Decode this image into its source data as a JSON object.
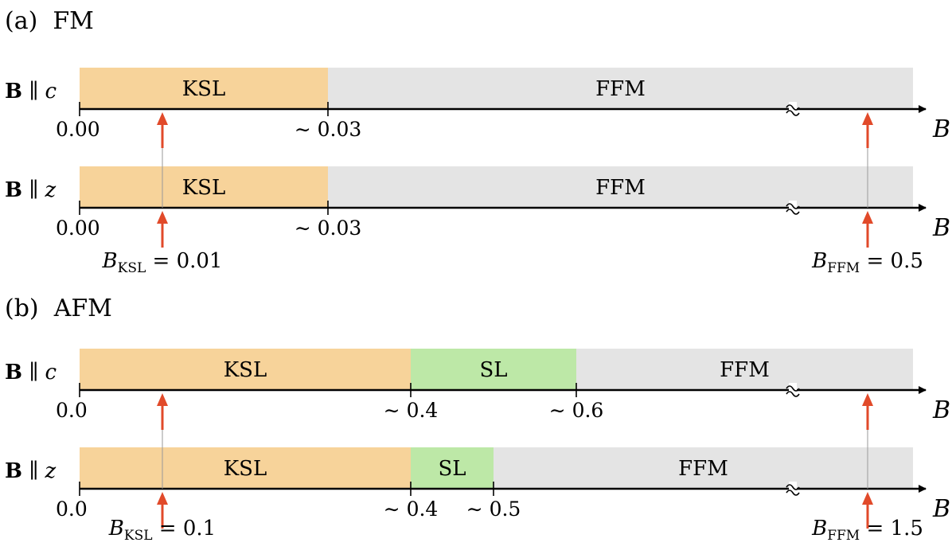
{
  "colors": {
    "ksl": "#f7d39a",
    "sl": "#bde8a7",
    "ffm": "#e4e4e4",
    "arrow": "#e14a2a",
    "axis": "#000000"
  },
  "panels": [
    {
      "letter": "(a)",
      "name": "FM",
      "max": 0.05,
      "rows": [
        {
          "field_bold": "B",
          "field_sep": "∥",
          "field_dir": "c",
          "phases": [
            {
              "label": "KSL",
              "start": 0,
              "end": 0.03,
              "color": "ksl"
            },
            {
              "label": "FFM",
              "start": 0.03,
              "end": null,
              "color": "ffm"
            }
          ],
          "ticks": [
            {
              "value": 0,
              "label": "0.00"
            },
            {
              "value": 0.03,
              "label": "∼ 0.03"
            }
          ],
          "axis_label": "B"
        },
        {
          "field_bold": "B",
          "field_sep": "∥",
          "field_dir": "z",
          "phases": [
            {
              "label": "KSL",
              "start": 0,
              "end": 0.03,
              "color": "ksl"
            },
            {
              "label": "FFM",
              "start": 0.03,
              "end": null,
              "color": "ffm"
            }
          ],
          "ticks": [
            {
              "value": 0,
              "label": "0.00"
            },
            {
              "value": 0.03,
              "label": "∼ 0.03"
            }
          ],
          "axis_label": "B"
        }
      ],
      "markers": {
        "ksl": {
          "value": 0.01,
          "sym": "B",
          "sub": "KSL",
          "rhs": "= 0.01"
        },
        "ffm": {
          "value": 0.5,
          "sym": "B",
          "sub": "FFM",
          "rhs": "= 0.5"
        }
      }
    },
    {
      "letter": "(b)",
      "name": "AFM",
      "max": 0.8,
      "rows": [
        {
          "field_bold": "B",
          "field_sep": "∥",
          "field_dir": "c",
          "phases": [
            {
              "label": "KSL",
              "start": 0,
              "end": 0.4,
              "color": "ksl"
            },
            {
              "label": "SL",
              "start": 0.4,
              "end": 0.6,
              "color": "sl"
            },
            {
              "label": "FFM",
              "start": 0.6,
              "end": null,
              "color": "ffm"
            }
          ],
          "ticks": [
            {
              "value": 0,
              "label": "0.0"
            },
            {
              "value": 0.4,
              "label": "∼ 0.4"
            },
            {
              "value": 0.6,
              "label": "∼ 0.6"
            }
          ],
          "axis_label": "B"
        },
        {
          "field_bold": "B",
          "field_sep": "∥",
          "field_dir": "z",
          "phases": [
            {
              "label": "KSL",
              "start": 0,
              "end": 0.4,
              "color": "ksl"
            },
            {
              "label": "SL",
              "start": 0.4,
              "end": 0.5,
              "color": "sl"
            },
            {
              "label": "FFM",
              "start": 0.5,
              "end": null,
              "color": "ffm"
            }
          ],
          "ticks": [
            {
              "value": 0,
              "label": "0.0"
            },
            {
              "value": 0.4,
              "label": "∼ 0.4"
            },
            {
              "value": 0.5,
              "label": "∼ 0.5"
            }
          ],
          "axis_label": "B"
        }
      ],
      "markers": {
        "ksl": {
          "value": 0.1,
          "sym": "B",
          "sub": "KSL",
          "rhs": "= 0.1"
        },
        "ffm": {
          "value": 1.5,
          "sym": "B",
          "sub": "FFM",
          "rhs": "= 1.5"
        }
      }
    }
  ]
}
